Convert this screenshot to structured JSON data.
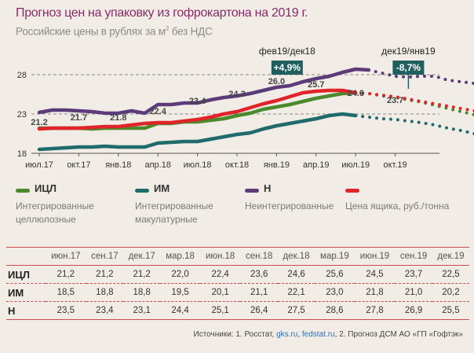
{
  "title": "Прогноз цен на упаковку из гофрокартона на 2019 г.",
  "subtitle_main": "Российские цены в рублях за м",
  "subtitle_sup": "2",
  "subtitle_tail": " без НДС",
  "chart_data": {
    "type": "line",
    "ylim": [
      17.5,
      29.5
    ],
    "yticks": [
      18,
      23,
      28
    ],
    "xticks": [
      "июл.17",
      "окт.17",
      "янв.18",
      "апр.18",
      "июл.18",
      "окт.18",
      "янв.19",
      "апр.19",
      "июл.19",
      "окт.19"
    ],
    "colors": {
      "ICL": "#4a8a2c",
      "IM": "#1f6b6b",
      "N": "#5b3b7a",
      "box": "#e0242a"
    },
    "series": [
      {
        "key": "N",
        "name": "Н",
        "actual": [
          23.2,
          23.5,
          23.5,
          23.4,
          23.3,
          23.1,
          23.1,
          23.4,
          23.1,
          24.2,
          24.2,
          24.4,
          24.4,
          24.8,
          25.1,
          25.3,
          25.6,
          26.0,
          26.4,
          26.6,
          27.1,
          27.5,
          27.8,
          28.3,
          28.7,
          28.6
        ],
        "forecast": [
          28.6,
          28.2,
          27.8,
          27.7,
          27.8,
          27.8,
          27.3,
          27.1,
          26.9,
          26.7,
          26.1,
          25.5
        ]
      },
      {
        "key": "ICL",
        "name": "ИЦЛ",
        "actual": [
          21.2,
          21.2,
          21.2,
          21.2,
          21.1,
          21.2,
          21.2,
          21.2,
          21.2,
          21.8,
          21.8,
          22.0,
          22.0,
          22.2,
          22.4,
          22.8,
          23.1,
          23.6,
          23.9,
          24.2,
          24.6,
          25.0,
          25.3,
          25.6,
          25.7
        ],
        "forecast": [
          25.7,
          25.6,
          25.3,
          25.1,
          24.8,
          24.5,
          24.1,
          23.7,
          23.3,
          22.9,
          22.5
        ]
      },
      {
        "key": "IM",
        "name": "ИМ",
        "actual": [
          18.5,
          18.6,
          18.7,
          18.8,
          18.8,
          18.9,
          18.8,
          18.8,
          18.8,
          19.3,
          19.4,
          19.5,
          19.5,
          19.8,
          20.1,
          20.4,
          20.6,
          21.1,
          21.5,
          21.8,
          22.1,
          22.4,
          22.8,
          23.0,
          22.8
        ],
        "forecast": [
          22.8,
          22.6,
          22.4,
          22.3,
          22.1,
          21.9,
          21.6,
          21.2,
          20.9,
          20.5,
          20.2
        ]
      },
      {
        "key": "box",
        "name": "Цена ящика, руб./тонна",
        "actual": [
          21.1,
          21.2,
          21.2,
          21.2,
          21.3,
          21.4,
          21.4,
          21.6,
          21.8,
          21.9,
          21.9,
          22.1,
          22.3,
          22.6,
          23.0,
          23.3,
          23.8,
          24.3,
          24.7,
          25.2,
          25.7,
          25.9,
          26.0,
          26.0,
          25.7
        ],
        "forecast": [
          25.7,
          25.6,
          25.4,
          25.2,
          24.9,
          24.6,
          24.3,
          24.0,
          23.7,
          23.4,
          23.0
        ]
      }
    ],
    "point_labels": [
      {
        "text": "21.2",
        "x": 0,
        "y": 21.6
      },
      {
        "text": "21.7",
        "x": 3,
        "y": 22.2
      },
      {
        "text": "21.8",
        "x": 6,
        "y": 22.2
      },
      {
        "text": "22.4",
        "x": 9,
        "y": 23.0
      },
      {
        "text": "23.4",
        "x": 12,
        "y": 24.3
      },
      {
        "text": "24.3",
        "x": 15,
        "y": 25.2
      },
      {
        "text": "26.0",
        "x": 18,
        "y": 26.8
      },
      {
        "text": "25.7",
        "x": 21,
        "y": 26.4
      },
      {
        "text": "24.6",
        "x": 24,
        "y": 25.3
      },
      {
        "text": "23.7",
        "x": 27,
        "y": 24.4
      }
    ],
    "callout_left": {
      "label": "фев19/дек18",
      "value": "+4,9%"
    },
    "callout_right": {
      "label": "дек19/янв19",
      "value": "-8,7%"
    }
  },
  "legend": [
    {
      "key": "ICL",
      "name": "ИЦЛ",
      "desc": "Интегрированные целлюлозные"
    },
    {
      "key": "IM",
      "name": "ИМ",
      "desc": "Интегрированные макулатурные"
    },
    {
      "key": "N",
      "name": "Н",
      "desc": "Неинтегрированные"
    },
    {
      "key": "box",
      "name": "",
      "desc": "Цена ящика, руб./тонна"
    }
  ],
  "table": {
    "columns": [
      "июн.17",
      "сен.17",
      "дек.17",
      "мар.18",
      "июн.18",
      "сен.18",
      "дек.18",
      "мар.19",
      "июн.19",
      "сен.19",
      "дек.19"
    ],
    "rows": [
      {
        "label": "ИЦЛ",
        "values": [
          "21,2",
          "21,2",
          "21,2",
          "22,0",
          "22,4",
          "23,6",
          "24,6",
          "25,6",
          "24,5",
          "23,7",
          "22,5"
        ]
      },
      {
        "label": "ИМ",
        "values": [
          "18,5",
          "18,8",
          "18,8",
          "19,5",
          "20,1",
          "21,1",
          "22,1",
          "23,0",
          "21,8",
          "21,0",
          "20,2"
        ]
      },
      {
        "label": "Н",
        "values": [
          "23,5",
          "23,4",
          "23,1",
          "24,4",
          "25,1",
          "26,4",
          "27,5",
          "28,6",
          "27,8",
          "26,9",
          "25,5"
        ]
      }
    ]
  },
  "sources": {
    "prefix": "Источники: 1. Росстат, ",
    "link1": "gks.ru",
    "sep": ", ",
    "link2": "fedstat.ru",
    "suffix": ", 2. Прогноз ДСМ АО «ГП «Гофтэк»"
  }
}
